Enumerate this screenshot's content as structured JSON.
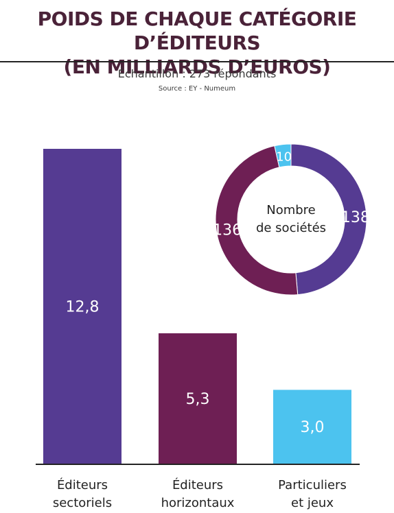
{
  "title_line1": "POIDS DE CHAQUE CATÉGORIE D’ÉDITEURS",
  "title_line2": "(EN MILLIARDS D’EUROS)",
  "subtitle": "Échantillon : 273 répondants",
  "source": "Source : EY - Numeum",
  "colors": {
    "title": "#4a2238",
    "sectoriels": "#553b92",
    "horizontaux": "#6e1f54",
    "particuliers": "#4cc3ef",
    "baseline": "#222222"
  },
  "chart_data": [
    {
      "type": "bar",
      "categories": [
        [
          "Éditeurs",
          "sectoriels"
        ],
        [
          "Éditeurs",
          "horizontaux"
        ],
        [
          "Particuliers",
          "et jeux"
        ]
      ],
      "values": [
        12.8,
        5.3,
        3.0
      ],
      "value_labels": [
        "12,8",
        "5,3",
        "3,0"
      ],
      "ylim": [
        0,
        12.8
      ]
    },
    {
      "type": "pie",
      "style": "donut",
      "center_label": [
        "Nombre",
        "de sociétés"
      ],
      "slices": [
        {
          "category": "Éditeurs sectoriels",
          "value": 138,
          "label": "138"
        },
        {
          "category": "Éditeurs horizontaux",
          "value": 136,
          "label": "136"
        },
        {
          "category": "Particuliers et jeux",
          "value": 10,
          "label": "10"
        }
      ]
    }
  ]
}
